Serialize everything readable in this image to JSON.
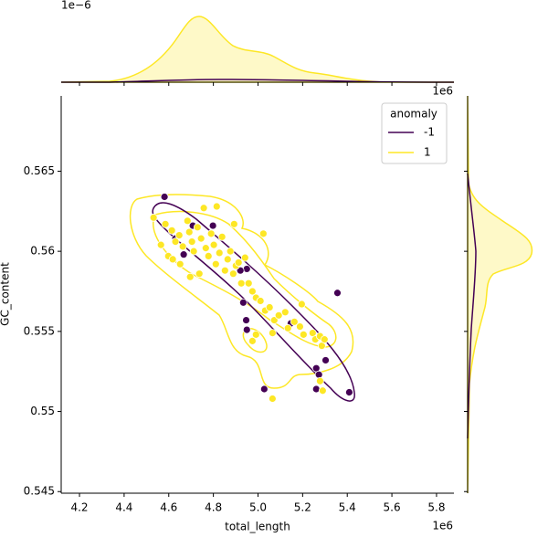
{
  "chart_data": {
    "type": "scatter",
    "xlabel": "total_length",
    "ylabel": "GC_content",
    "x_offset_label": "1e6",
    "top_x_offset_label": "1e6",
    "top_y_offset_label": "1e−6",
    "legend_title": "anomaly",
    "legend": "upper right",
    "xlim": [
      4.118,
      5.878
    ],
    "ylim": [
      0.5449,
      0.5697
    ],
    "xticks": [
      4.2,
      4.4,
      4.6,
      4.8,
      {
        "value": 5.0,
        "label": "5.0"
      },
      5.2,
      5.4,
      5.6,
      5.8
    ],
    "yticks": [
      0.545,
      0.55,
      0.555,
      0.56,
      0.565
    ],
    "series": [
      {
        "name": "-1",
        "color": "#440154",
        "x": [
          4.581,
          4.63,
          4.667,
          4.95,
          4.921,
          4.934,
          4.947,
          4.95,
          5.356,
          5.028,
          5.147,
          5.261,
          5.273,
          5.261,
          5.303,
          5.409,
          4.708,
          4.798
        ],
        "y": [
          0.5634,
          0.5608,
          0.5598,
          0.5589,
          0.5588,
          0.5568,
          0.5557,
          0.5551,
          0.5574,
          0.5514,
          0.5555,
          0.5527,
          0.5523,
          0.5514,
          0.5532,
          0.5512,
          0.5616,
          0.5616
        ]
      },
      {
        "name": "1",
        "color": "#fde725",
        "x": [
          4.532,
          4.585,
          4.614,
          4.63,
          4.647,
          4.663,
          4.684,
          4.692,
          4.704,
          4.712,
          4.729,
          4.745,
          4.757,
          4.766,
          4.778,
          4.79,
          4.802,
          4.811,
          4.827,
          4.839,
          4.852,
          4.864,
          4.876,
          4.889,
          4.901,
          4.913,
          4.925,
          4.942,
          4.958,
          4.975,
          4.991,
          5.011,
          5.032,
          5.052,
          5.073,
          5.093,
          5.122,
          5.134,
          5.163,
          5.188,
          5.204,
          5.245,
          5.257,
          5.278,
          5.286,
          5.298,
          5.278,
          5.29,
          5.065,
          5.024,
          4.893,
          4.815,
          4.975,
          4.991,
          5.065,
          5.196,
          4.598,
          4.618,
          4.565,
          4.651,
          4.696,
          4.737
        ],
        "y": [
          0.5621,
          0.5617,
          0.5613,
          0.5606,
          0.561,
          0.5603,
          0.5619,
          0.5612,
          0.5606,
          0.56,
          0.5615,
          0.5608,
          0.5627,
          0.5602,
          0.5597,
          0.5611,
          0.5604,
          0.5592,
          0.5599,
          0.5609,
          0.5588,
          0.5595,
          0.56,
          0.5586,
          0.5591,
          0.5593,
          0.558,
          0.5596,
          0.558,
          0.5575,
          0.5571,
          0.5569,
          0.5563,
          0.5565,
          0.5557,
          0.556,
          0.5562,
          0.5552,
          0.5556,
          0.5553,
          0.5548,
          0.5549,
          0.5545,
          0.5547,
          0.5541,
          0.5545,
          0.5519,
          0.5513,
          0.5508,
          0.5611,
          0.5617,
          0.5628,
          0.5544,
          0.5548,
          0.5549,
          0.5567,
          0.5597,
          0.5595,
          0.5604,
          0.5592,
          0.5584,
          0.5586
        ]
      }
    ]
  }
}
